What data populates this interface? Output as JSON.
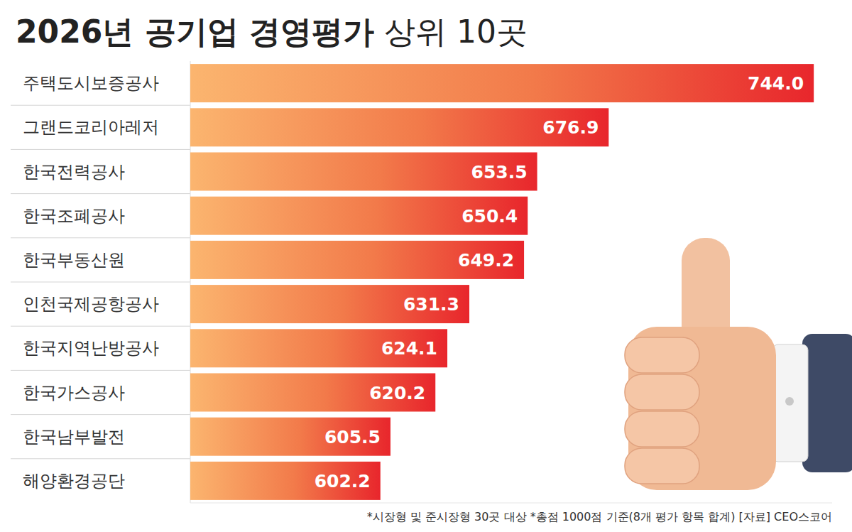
{
  "chart_data": {
    "type": "bar",
    "orientation": "horizontal",
    "title": "2026년 공기업 경영평가",
    "subtitle": "상위 10곳",
    "categories": [
      "주택도시보증공사",
      "그랜드코리아레저",
      "한국전력공사",
      "한국조폐공사",
      "한국부동산원",
      "인천국제공항공사",
      "한국지역난방공사",
      "한국가스공사",
      "한국남부발전",
      "해양환경공단"
    ],
    "values": [
      744.0,
      676.9,
      653.5,
      650.4,
      649.2,
      631.3,
      624.1,
      620.2,
      605.5,
      602.2
    ],
    "value_labels": [
      "744.0",
      "676.9",
      "653.5",
      "650.4",
      "649.2",
      "631.3",
      "624.1",
      "620.2",
      "605.5",
      "602.2"
    ],
    "color": "#e8262c",
    "xlim": [
      540,
      750
    ],
    "xticks": [],
    "tick_labels": false,
    "grid": false,
    "data_labels": true,
    "annotations": [
      "*시장형 및 준시장형 30곳 대상 *총점 1000점 기준(8개 평가 항목 합계) [자료] CEO스코어"
    ]
  }
}
